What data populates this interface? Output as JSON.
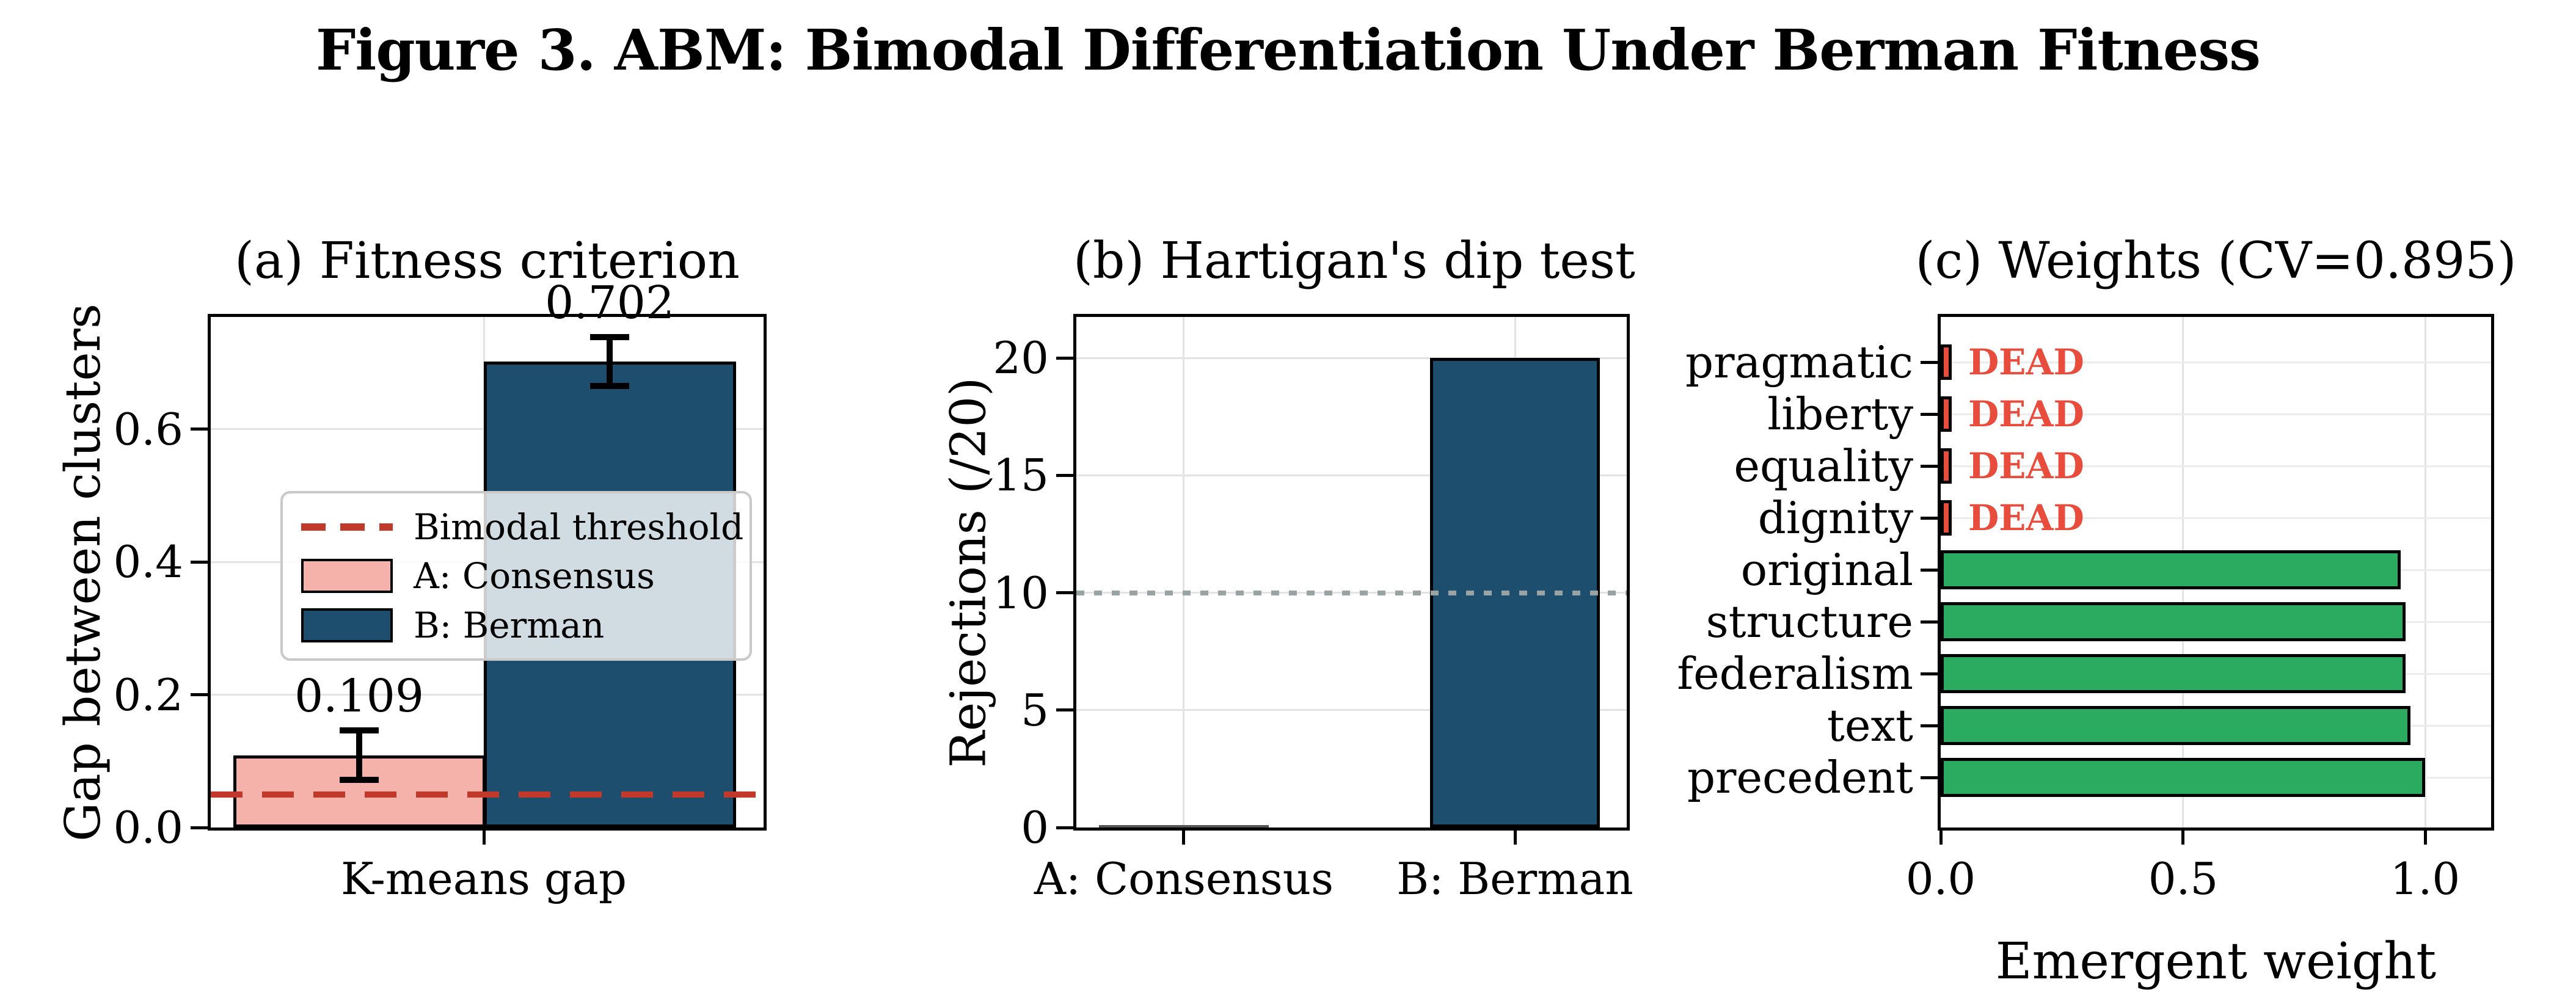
{
  "figure_title": "Figure 3. ABM: Bimodal Differentiation Under Berman Fitness",
  "colors": {
    "consensus_pink": "#f5b2ab",
    "berman_blue": "#1d4e6d",
    "threshold_red": "#c0392b",
    "dead_red": "#e74c3c",
    "alive_green": "#2aab60",
    "refline_gray": "#99a3a4",
    "gridline_gray": "#e3e3e3"
  },
  "legend": {
    "items": [
      {
        "label": "Bimodal threshold",
        "sample": "red-dashed-line"
      },
      {
        "label": "A: Consensus",
        "sample": "pink-patch"
      },
      {
        "label": "B: Berman",
        "sample": "blue-patch"
      }
    ]
  },
  "chart_data": [
    {
      "id": "a",
      "type": "bar",
      "title": "(a) Fitness criterion",
      "ylabel": "Gap between clusters",
      "categories": [
        "A: Consensus",
        "B: Berman"
      ],
      "values": [
        0.109,
        0.702
      ],
      "errors": [
        0.037,
        0.037
      ],
      "bar_labels": [
        "0.109",
        "0.702"
      ],
      "bar_colors": [
        "#f5b2ab",
        "#1d4e6d"
      ],
      "yticks": [
        "0.0",
        "0.2",
        "0.4",
        "0.6"
      ],
      "ylim": [
        0,
        0.78
      ],
      "xtick_labels": [
        "K-means gap"
      ],
      "threshold": {
        "value": 0.05,
        "label": "Bimodal threshold",
        "color": "#c0392b"
      },
      "grid": true,
      "legend_position": "center-left"
    },
    {
      "id": "b",
      "type": "bar",
      "title": "(b) Hartigan's dip test",
      "ylabel": "Rejections (/20)",
      "categories": [
        "A: Consensus",
        "B: Berman"
      ],
      "values": [
        0,
        20
      ],
      "bar_colors": [
        "#f5b2ab",
        "#1d4e6d"
      ],
      "yticks": [
        "0",
        "5",
        "10",
        "15",
        "20"
      ],
      "ylim": [
        0,
        22
      ],
      "xtick_labels": [
        "A: Consensus",
        "B: Berman"
      ],
      "refline": {
        "value": 10,
        "style": "dotted",
        "color": "#99a3a4"
      },
      "grid": true
    },
    {
      "id": "c",
      "type": "barh",
      "title": "(c) Weights (CV=0.895)",
      "xlabel": "Emergent weight",
      "categories": [
        "pragmatic",
        "liberty",
        "equality",
        "dignity",
        "original",
        "structure",
        "federalism",
        "text",
        "precedent"
      ],
      "values": [
        0.02,
        0.02,
        0.02,
        0.02,
        0.95,
        0.96,
        0.96,
        0.97,
        1.0
      ],
      "dead_flags": [
        true,
        true,
        true,
        true,
        false,
        false,
        false,
        false,
        false
      ],
      "dead_label": "DEAD",
      "bar_color_alive": "#2aab60",
      "bar_color_dead": "#e74c3c",
      "xticks": [
        "0.0",
        "0.5",
        "1.0"
      ],
      "xlim": [
        0,
        1.15
      ],
      "grid": true
    }
  ]
}
